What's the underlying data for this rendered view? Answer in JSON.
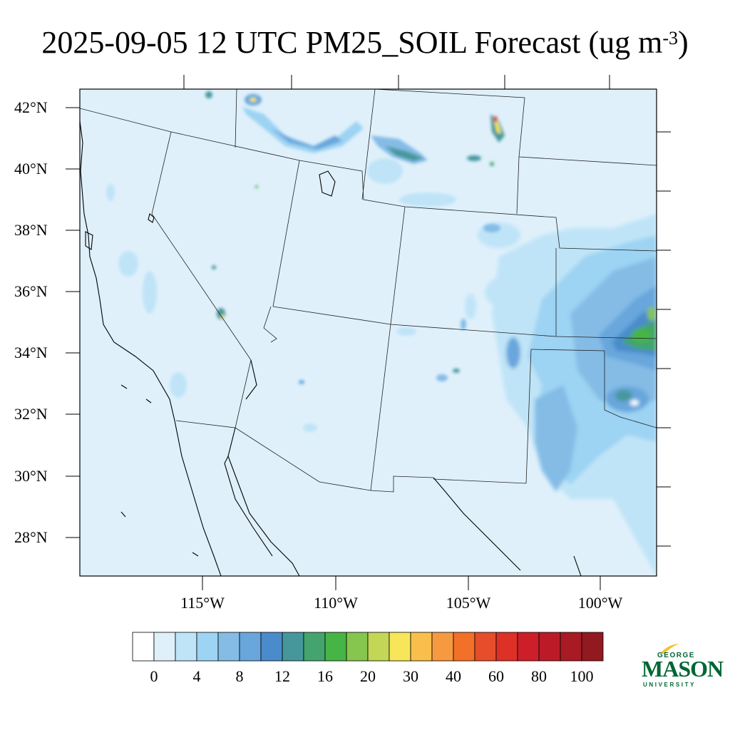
{
  "title": {
    "main": "2025-09-05 12 UTC PM25_SOIL Forecast (ug m",
    "superscript": "-3",
    "close": ")"
  },
  "map": {
    "extent": {
      "lon_min": -119.5,
      "lon_max": -97.6,
      "lat_min": 26.8,
      "lat_max": 42.6
    },
    "lat_labels": [
      "42°N",
      "40°N",
      "38°N",
      "36°N",
      "34°N",
      "32°N",
      "30°N",
      "28°N"
    ],
    "lon_labels": [
      "115°W",
      "110°W",
      "105°W",
      "100°W"
    ],
    "background_color": "#dff0fb"
  },
  "colorbar": {
    "colors": [
      "#ffffff",
      "#dff0fb",
      "#bfe4f7",
      "#9dd3f3",
      "#84bce6",
      "#68a6dc",
      "#4a8ccb",
      "#46979b",
      "#43a56d",
      "#47b446",
      "#86c54e",
      "#c3d656",
      "#f8e65a",
      "#f9bf4d",
      "#f7993f",
      "#f37029",
      "#e64d2a",
      "#dd3026",
      "#cd1f2a",
      "#bb1b27",
      "#a81a24",
      "#921920"
    ],
    "labels": [
      "0",
      "4",
      "8",
      "12",
      "16",
      "20",
      "30",
      "40",
      "60",
      "80",
      "100"
    ]
  },
  "logo": {
    "line1": "GEORGE",
    "line2": "MASON",
    "line3": "UNIVERSITY",
    "color": "#006633",
    "accent": "#f2c230"
  }
}
